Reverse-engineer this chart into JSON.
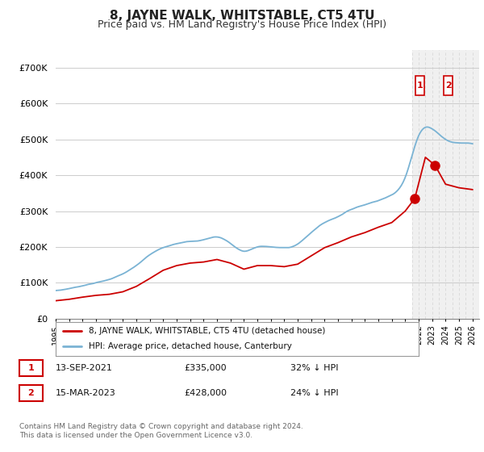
{
  "title": "8, JAYNE WALK, WHITSTABLE, CT5 4TU",
  "subtitle": "Price paid vs. HM Land Registry's House Price Index (HPI)",
  "title_fontsize": 11,
  "subtitle_fontsize": 9,
  "ylabel_ticks": [
    "£0",
    "£100K",
    "£200K",
    "£300K",
    "£400K",
    "£500K",
    "£600K",
    "£700K"
  ],
  "ytick_vals": [
    0,
    100000,
    200000,
    300000,
    400000,
    500000,
    600000,
    700000
  ],
  "ylim": [
    0,
    750000
  ],
  "xlim_start": 1995.0,
  "xlim_end": 2026.5,
  "hpi_color": "#7ab3d4",
  "price_color": "#cc0000",
  "sale1_year": 2021.71,
  "sale1_price": 335000,
  "sale2_year": 2023.21,
  "sale2_price": 428000,
  "sale1_date": "13-SEP-2021",
  "sale1_amount": "£335,000",
  "sale1_hpi": "32% ↓ HPI",
  "sale2_date": "15-MAR-2023",
  "sale2_amount": "£428,000",
  "sale2_hpi": "24% ↓ HPI",
  "legend_line1": "8, JAYNE WALK, WHITSTABLE, CT5 4TU (detached house)",
  "legend_line2": "HPI: Average price, detached house, Canterbury",
  "footer": "Contains HM Land Registry data © Crown copyright and database right 2024.\nThis data is licensed under the Open Government Licence v3.0.",
  "background_color": "#ffffff",
  "grid_color": "#cccccc",
  "shaded_region_start": 2021.5,
  "hpi_points": [
    [
      1995,
      78000
    ],
    [
      1996,
      84000
    ],
    [
      1997,
      92000
    ],
    [
      1998,
      100000
    ],
    [
      1999,
      110000
    ],
    [
      2000,
      125000
    ],
    [
      2001,
      148000
    ],
    [
      2002,
      178000
    ],
    [
      2003,
      198000
    ],
    [
      2004,
      210000
    ],
    [
      2005,
      215000
    ],
    [
      2006,
      220000
    ],
    [
      2007,
      228000
    ],
    [
      2008,
      210000
    ],
    [
      2009,
      188000
    ],
    [
      2010,
      200000
    ],
    [
      2011,
      200000
    ],
    [
      2012,
      198000
    ],
    [
      2013,
      208000
    ],
    [
      2014,
      240000
    ],
    [
      2015,
      268000
    ],
    [
      2016,
      285000
    ],
    [
      2017,
      305000
    ],
    [
      2018,
      318000
    ],
    [
      2019,
      330000
    ],
    [
      2020,
      345000
    ],
    [
      2021,
      395000
    ],
    [
      2022,
      510000
    ],
    [
      2023,
      530000
    ],
    [
      2024,
      500000
    ],
    [
      2025,
      490000
    ],
    [
      2026,
      488000
    ]
  ],
  "prop_points": [
    [
      1995,
      50000
    ],
    [
      1996,
      54000
    ],
    [
      1997,
      60000
    ],
    [
      1998,
      65000
    ],
    [
      1999,
      68000
    ],
    [
      2000,
      75000
    ],
    [
      2001,
      90000
    ],
    [
      2002,
      112000
    ],
    [
      2003,
      135000
    ],
    [
      2004,
      148000
    ],
    [
      2005,
      155000
    ],
    [
      2006,
      158000
    ],
    [
      2007,
      165000
    ],
    [
      2008,
      155000
    ],
    [
      2009,
      138000
    ],
    [
      2010,
      148000
    ],
    [
      2011,
      148000
    ],
    [
      2012,
      145000
    ],
    [
      2013,
      152000
    ],
    [
      2014,
      175000
    ],
    [
      2015,
      198000
    ],
    [
      2016,
      212000
    ],
    [
      2017,
      228000
    ],
    [
      2018,
      240000
    ],
    [
      2019,
      255000
    ],
    [
      2020,
      268000
    ],
    [
      2021,
      300000
    ],
    [
      2021.71,
      335000
    ],
    [
      2022.5,
      450000
    ],
    [
      2023.21,
      428000
    ],
    [
      2024,
      375000
    ],
    [
      2025,
      365000
    ],
    [
      2026,
      360000
    ]
  ]
}
